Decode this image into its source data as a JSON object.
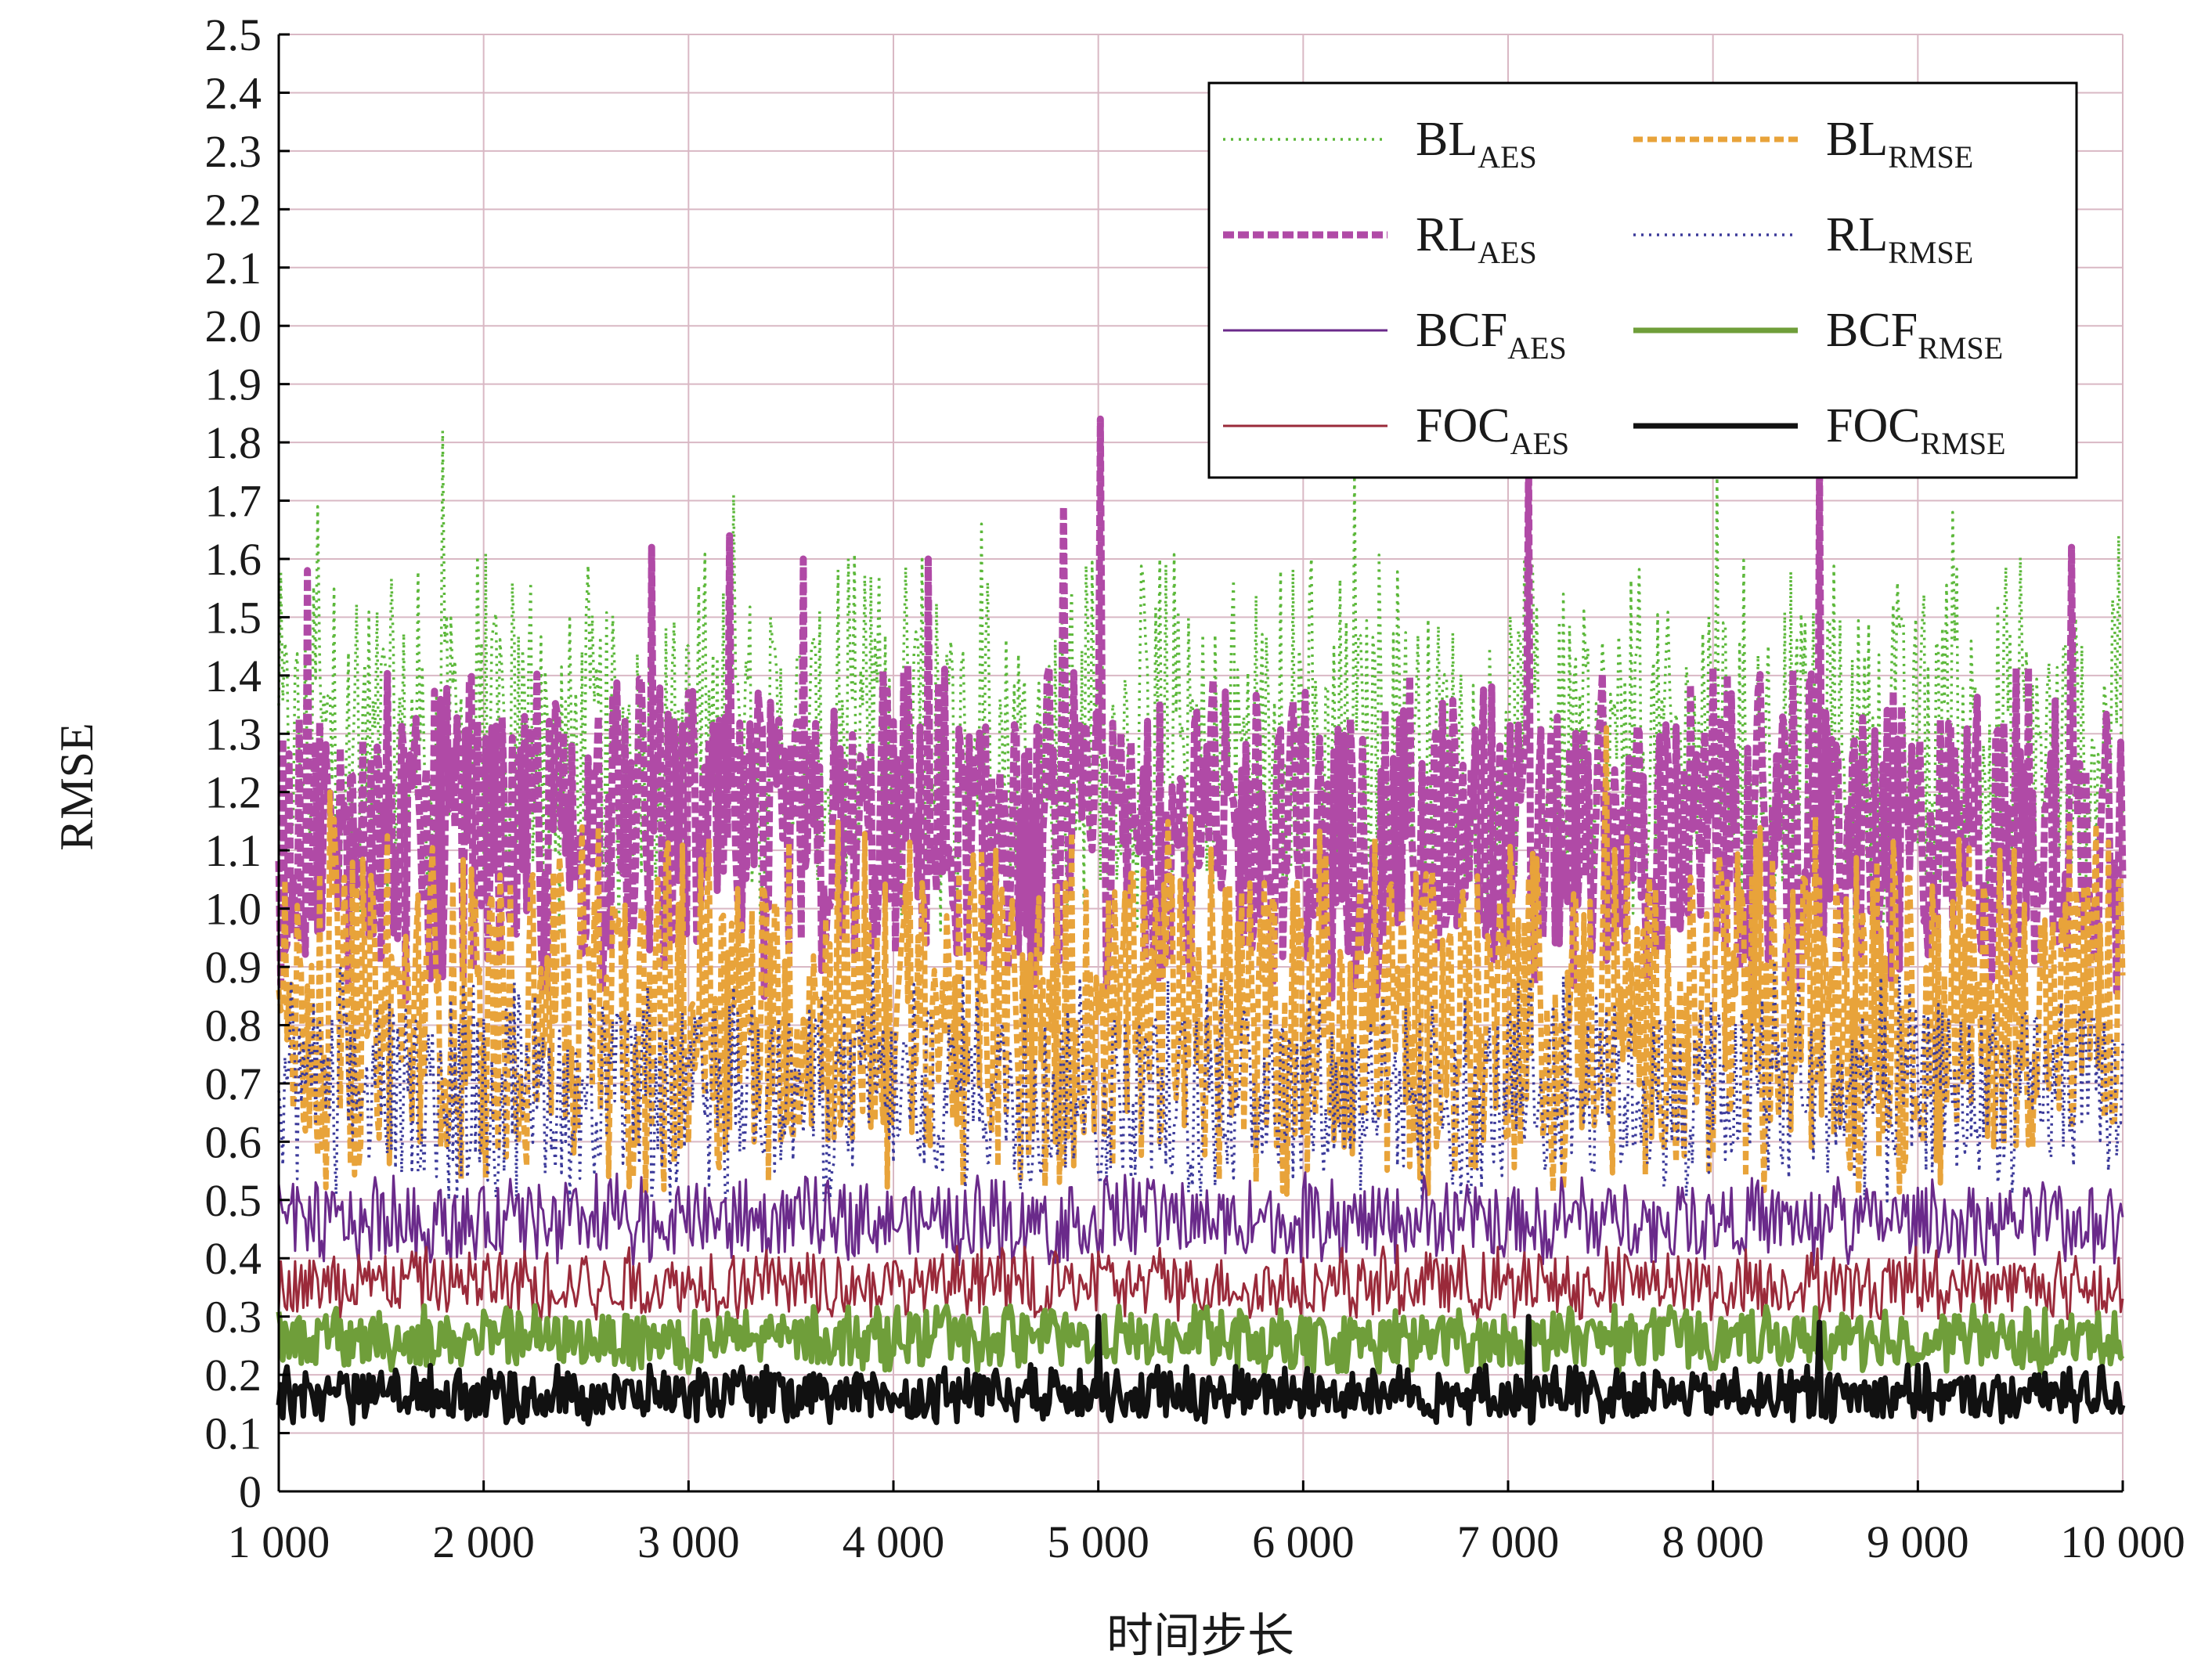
{
  "chart_data": {
    "type": "line",
    "title": "",
    "xlabel": "时间步长",
    "ylabel": "RMSE",
    "xlim": [
      1000,
      10000
    ],
    "ylim": [
      0,
      2.5
    ],
    "x_ticks": [
      1000,
      2000,
      3000,
      4000,
      5000,
      6000,
      7000,
      8000,
      9000,
      10000
    ],
    "x_tick_labels": [
      "1 000",
      "2 000",
      "3 000",
      "4 000",
      "5 000",
      "6 000",
      "7 000",
      "8 000",
      "9 000",
      "10 000"
    ],
    "y_ticks": [
      0,
      0.1,
      0.2,
      0.3,
      0.4,
      0.5,
      0.6,
      0.7,
      0.8,
      0.9,
      1.0,
      1.1,
      1.2,
      1.3,
      1.4,
      1.5,
      1.6,
      1.7,
      1.8,
      1.9,
      2.0,
      2.1,
      2.2,
      2.3,
      2.4,
      2.5
    ],
    "y_tick_labels": [
      "0",
      "0.1",
      "0.2",
      "0.3",
      "0.4",
      "0.5",
      "0.6",
      "0.7",
      "0.8",
      "0.9",
      "1.0",
      "1.1",
      "1.2",
      "1.3",
      "1.4",
      "1.5",
      "1.6",
      "1.7",
      "1.8",
      "1.9",
      "2.0",
      "2.1",
      "2.2",
      "2.3",
      "2.4",
      "2.5"
    ],
    "grid": true,
    "legend_position": "top-right",
    "legend_columns": 2,
    "series": [
      {
        "name": "BL",
        "subscript": "AES",
        "color": "#5cb83a",
        "style": "dotted",
        "typical_low": 1.05,
        "typical_high": 1.5,
        "peaks": [
          [
            1190,
            1.69
          ],
          [
            1800,
            1.82
          ],
          [
            2230,
            1.56
          ],
          [
            3220,
            1.71
          ],
          [
            4430,
            1.66
          ],
          [
            5890,
            1.58
          ],
          [
            6250,
            1.75
          ],
          [
            7100,
            1.7
          ],
          [
            8020,
            1.74
          ],
          [
            9170,
            1.68
          ],
          [
            9980,
            1.64
          ]
        ]
      },
      {
        "name": "BL",
        "subscript": "RMSE",
        "color": "#e8a33a",
        "style": "dashed",
        "typical_low": 0.6,
        "typical_high": 1.05,
        "peaks": [
          [
            1250,
            1.2
          ],
          [
            2480,
            1.14
          ],
          [
            3100,
            1.12
          ],
          [
            4500,
            1.1
          ],
          [
            7480,
            1.31
          ],
          [
            8800,
            1.08
          ],
          [
            9400,
            1.1
          ]
        ]
      },
      {
        "name": "RL",
        "subscript": "AES",
        "color": "#b04aa6",
        "style": "thick-dashed",
        "typical_low": 0.92,
        "typical_high": 1.32,
        "peaks": [
          [
            1140,
            1.58
          ],
          [
            2820,
            1.62
          ],
          [
            3200,
            1.64
          ],
          [
            3560,
            1.6
          ],
          [
            4170,
            1.6
          ],
          [
            4830,
            1.69
          ],
          [
            5010,
            1.84
          ],
          [
            7100,
            1.78
          ],
          [
            8520,
            1.76
          ],
          [
            9750,
            1.62
          ]
        ]
      },
      {
        "name": "RL",
        "subscript": "RMSE",
        "color": "#3b3a9a",
        "style": "dotted",
        "typical_low": 0.55,
        "typical_high": 0.82,
        "peaks": [
          [
            1300,
            0.9
          ],
          [
            3900,
            0.92
          ],
          [
            5600,
            0.88
          ],
          [
            8300,
            0.91
          ]
        ]
      },
      {
        "name": "BCF",
        "subscript": "AES",
        "color": "#6a2a8a",
        "style": "solid",
        "typical_low": 0.41,
        "typical_high": 0.52,
        "peaks": []
      },
      {
        "name": "BCF",
        "subscript": "RMSE",
        "color": "#6f9e3a",
        "style": "thick-solid",
        "typical_low": 0.22,
        "typical_high": 0.3,
        "peaks": []
      },
      {
        "name": "FOC",
        "subscript": "AES",
        "color": "#9a2a3a",
        "style": "solid",
        "typical_low": 0.31,
        "typical_high": 0.4,
        "peaks": []
      },
      {
        "name": "FOC",
        "subscript": "RMSE",
        "color": "#111111",
        "style": "thick-solid",
        "typical_low": 0.13,
        "typical_high": 0.2,
        "peaks": [
          [
            5000,
            0.3
          ],
          [
            7100,
            0.3
          ],
          [
            8520,
            0.29
          ]
        ]
      }
    ]
  }
}
